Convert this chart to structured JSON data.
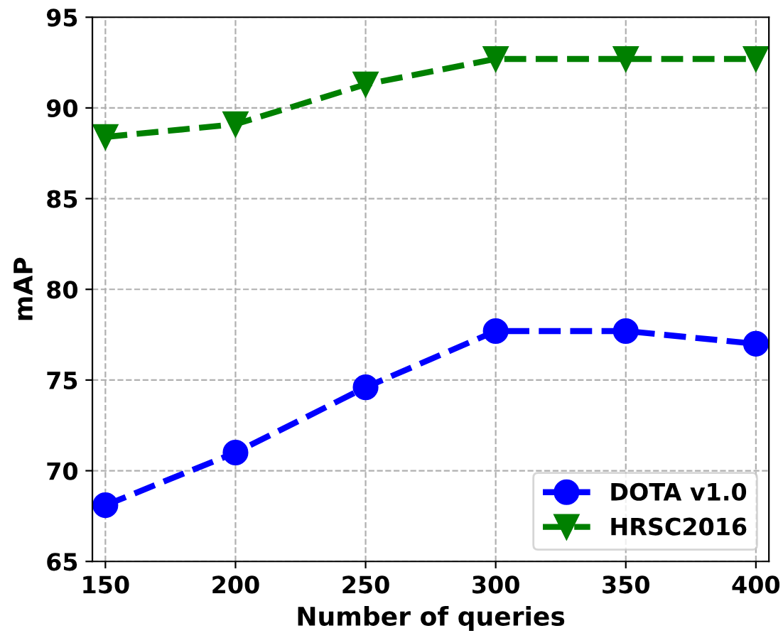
{
  "chart_data": {
    "type": "line",
    "xlabel": "Number of queries",
    "ylabel": "mAP",
    "x": [
      150,
      200,
      250,
      300,
      350,
      400
    ],
    "series": [
      {
        "name": "DOTA v1.0",
        "color": "#0000ff",
        "marker": "circle",
        "values": [
          68.1,
          71.0,
          74.6,
          77.7,
          77.7,
          77.0
        ]
      },
      {
        "name": "HRSC2016",
        "color": "#008000",
        "marker": "triangle",
        "values": [
          88.4,
          89.1,
          91.3,
          92.7,
          92.7,
          92.7
        ]
      }
    ],
    "xlim": [
      145,
      405
    ],
    "ylim": [
      65,
      95
    ],
    "xticks": [
      150,
      200,
      250,
      300,
      350,
      400
    ],
    "yticks": [
      65,
      70,
      75,
      80,
      85,
      90,
      95
    ],
    "grid": true,
    "legend": "bottom right",
    "line_style": "dashed"
  }
}
